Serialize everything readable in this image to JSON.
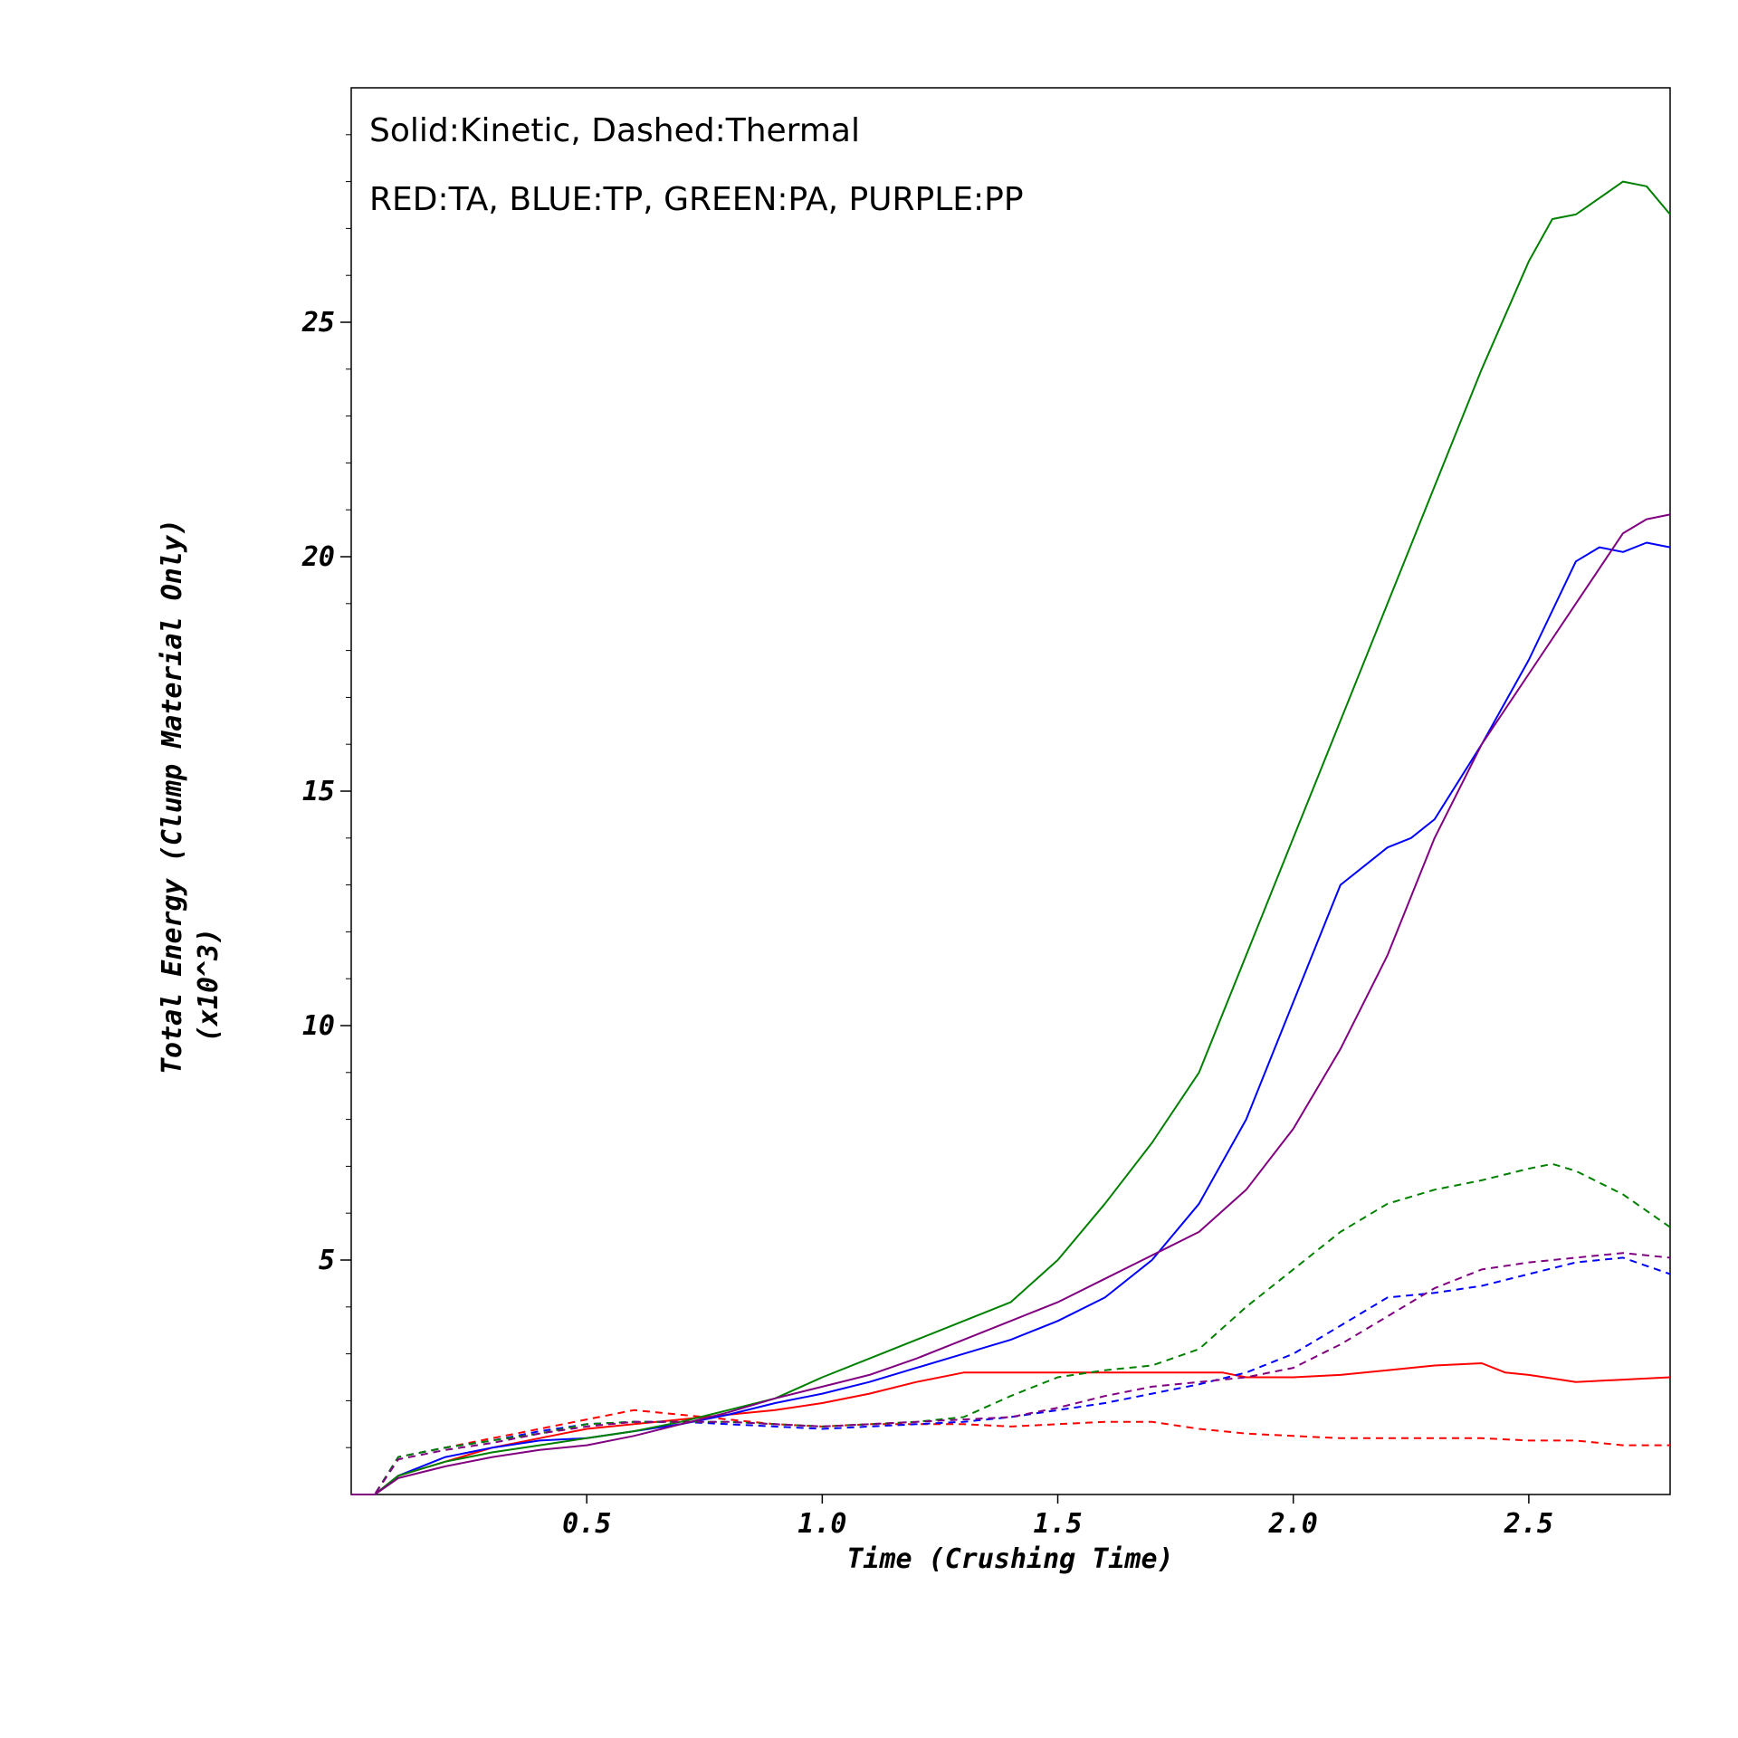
{
  "chart_data": {
    "type": "line",
    "annotations": [
      "Solid:Kinetic, Dashed:Thermal",
      "RED:TA, BLUE:TP, GREEN:PA, PURPLE:PP"
    ],
    "xlabel": "Time (Crushing Time)",
    "ylabel": "Total Energy (Clump Material Only)",
    "ylabel_unit": "(x10^3)",
    "xlim": [
      0,
      2.8
    ],
    "ylim": [
      0,
      30
    ],
    "x_ticks": [
      0.5,
      1.0,
      1.5,
      2.0,
      2.5
    ],
    "x_tick_labels": [
      "0.5",
      "1.0",
      "1.5",
      "2.0",
      "2.5"
    ],
    "y_ticks": [
      5,
      10,
      15,
      20,
      25
    ],
    "y_tick_labels": [
      "5",
      "10",
      "15",
      "20",
      "25"
    ],
    "grid": false,
    "series": [
      {
        "color": "#ff0000",
        "style": "solid",
        "x": [
          0,
          0.05,
          0.1,
          0.2,
          0.3,
          0.4,
          0.5,
          0.6,
          0.7,
          0.8,
          0.9,
          1.0,
          1.1,
          1.2,
          1.3,
          1.4,
          1.5,
          1.6,
          1.7,
          1.8,
          1.85,
          1.9,
          2.0,
          2.1,
          2.2,
          2.3,
          2.4,
          2.45,
          2.5,
          2.6,
          2.7,
          2.8
        ],
        "y": [
          0,
          0,
          0.4,
          0.7,
          1.0,
          1.2,
          1.4,
          1.5,
          1.6,
          1.7,
          1.8,
          1.95,
          2.15,
          2.4,
          2.6,
          2.6,
          2.6,
          2.6,
          2.6,
          2.6,
          2.6,
          2.5,
          2.5,
          2.55,
          2.65,
          2.75,
          2.8,
          2.6,
          2.55,
          2.4,
          2.45,
          2.5
        ]
      },
      {
        "color": "#ff0000",
        "style": "dashed",
        "x": [
          0,
          0.05,
          0.1,
          0.2,
          0.3,
          0.4,
          0.5,
          0.6,
          0.7,
          0.8,
          0.9,
          1.0,
          1.1,
          1.2,
          1.3,
          1.4,
          1.5,
          1.6,
          1.7,
          1.8,
          1.9,
          2.0,
          2.1,
          2.2,
          2.3,
          2.4,
          2.5,
          2.6,
          2.7,
          2.8
        ],
        "y": [
          0,
          0,
          0.8,
          1.0,
          1.2,
          1.4,
          1.6,
          1.8,
          1.7,
          1.6,
          1.5,
          1.45,
          1.5,
          1.5,
          1.5,
          1.45,
          1.5,
          1.55,
          1.55,
          1.4,
          1.3,
          1.25,
          1.2,
          1.2,
          1.2,
          1.2,
          1.15,
          1.15,
          1.05,
          1.05
        ]
      },
      {
        "color": "#0000ff",
        "style": "solid",
        "x": [
          0,
          0.05,
          0.1,
          0.2,
          0.3,
          0.4,
          0.5,
          0.6,
          0.7,
          0.8,
          0.9,
          1.0,
          1.1,
          1.2,
          1.3,
          1.4,
          1.5,
          1.6,
          1.7,
          1.8,
          1.9,
          2.0,
          2.1,
          2.2,
          2.25,
          2.3,
          2.4,
          2.5,
          2.6,
          2.65,
          2.7,
          2.75,
          2.8
        ],
        "y": [
          0,
          0,
          0.4,
          0.8,
          1.0,
          1.15,
          1.2,
          1.35,
          1.5,
          1.7,
          1.95,
          2.15,
          2.4,
          2.7,
          3.0,
          3.3,
          3.7,
          4.2,
          5.0,
          6.2,
          8.0,
          10.5,
          13.0,
          13.8,
          14.0,
          14.4,
          16.0,
          17.8,
          19.9,
          20.2,
          20.1,
          20.3,
          20.2
        ]
      },
      {
        "color": "#0000ff",
        "style": "dashed",
        "x": [
          0,
          0.05,
          0.1,
          0.2,
          0.3,
          0.4,
          0.5,
          0.6,
          0.7,
          0.8,
          0.9,
          1.0,
          1.1,
          1.2,
          1.3,
          1.4,
          1.5,
          1.6,
          1.7,
          1.8,
          1.9,
          2.0,
          2.1,
          2.2,
          2.3,
          2.4,
          2.5,
          2.6,
          2.7,
          2.8
        ],
        "y": [
          0,
          0,
          0.8,
          1.0,
          1.15,
          1.35,
          1.5,
          1.55,
          1.55,
          1.5,
          1.45,
          1.4,
          1.45,
          1.5,
          1.55,
          1.65,
          1.8,
          1.95,
          2.15,
          2.35,
          2.6,
          3.0,
          3.6,
          4.2,
          4.3,
          4.45,
          4.7,
          4.95,
          5.05,
          4.7
        ]
      },
      {
        "color": "#008000",
        "style": "solid",
        "x": [
          0,
          0.05,
          0.1,
          0.2,
          0.3,
          0.4,
          0.5,
          0.6,
          0.7,
          0.8,
          0.9,
          1.0,
          1.1,
          1.2,
          1.3,
          1.4,
          1.5,
          1.6,
          1.7,
          1.8,
          1.9,
          2.0,
          2.1,
          2.2,
          2.3,
          2.4,
          2.5,
          2.55,
          2.6,
          2.7,
          2.75,
          2.8
        ],
        "y": [
          0,
          0,
          0.4,
          0.7,
          0.9,
          1.05,
          1.2,
          1.35,
          1.55,
          1.8,
          2.05,
          2.5,
          2.9,
          3.3,
          3.7,
          4.1,
          5.0,
          6.2,
          7.5,
          9.0,
          11.5,
          14.0,
          16.5,
          19.0,
          21.5,
          24.0,
          26.3,
          27.2,
          27.3,
          28.0,
          27.9,
          27.3
        ]
      },
      {
        "color": "#008000",
        "style": "dashed",
        "x": [
          0,
          0.05,
          0.1,
          0.2,
          0.3,
          0.4,
          0.5,
          0.6,
          0.7,
          0.8,
          0.9,
          1.0,
          1.1,
          1.2,
          1.3,
          1.4,
          1.5,
          1.6,
          1.7,
          1.8,
          1.9,
          2.0,
          2.1,
          2.2,
          2.3,
          2.4,
          2.5,
          2.55,
          2.6,
          2.7,
          2.8
        ],
        "y": [
          0,
          0,
          0.8,
          1.0,
          1.15,
          1.3,
          1.5,
          1.55,
          1.55,
          1.55,
          1.5,
          1.45,
          1.5,
          1.55,
          1.65,
          2.1,
          2.5,
          2.65,
          2.75,
          3.1,
          4.0,
          4.8,
          5.6,
          6.2,
          6.5,
          6.7,
          6.95,
          7.05,
          6.9,
          6.4,
          5.7
        ]
      },
      {
        "color": "#800080",
        "style": "solid",
        "x": [
          0,
          0.05,
          0.1,
          0.2,
          0.3,
          0.4,
          0.5,
          0.6,
          0.7,
          0.8,
          0.9,
          1.0,
          1.1,
          1.2,
          1.3,
          1.4,
          1.5,
          1.6,
          1.7,
          1.8,
          1.9,
          2.0,
          2.1,
          2.2,
          2.3,
          2.4,
          2.5,
          2.6,
          2.7,
          2.75,
          2.8
        ],
        "y": [
          0,
          0,
          0.35,
          0.6,
          0.8,
          0.95,
          1.05,
          1.25,
          1.5,
          1.75,
          2.05,
          2.3,
          2.55,
          2.9,
          3.3,
          3.7,
          4.1,
          4.6,
          5.1,
          5.6,
          6.5,
          7.8,
          9.5,
          11.5,
          14.0,
          16.0,
          17.5,
          19.0,
          20.5,
          20.8,
          20.9
        ]
      },
      {
        "color": "#800080",
        "style": "dashed",
        "x": [
          0,
          0.05,
          0.1,
          0.2,
          0.3,
          0.4,
          0.5,
          0.6,
          0.7,
          0.8,
          0.9,
          1.0,
          1.1,
          1.2,
          1.3,
          1.4,
          1.5,
          1.6,
          1.7,
          1.8,
          1.9,
          2.0,
          2.1,
          2.2,
          2.3,
          2.4,
          2.5,
          2.6,
          2.7,
          2.8
        ],
        "y": [
          0,
          0,
          0.75,
          0.95,
          1.1,
          1.3,
          1.45,
          1.55,
          1.55,
          1.55,
          1.5,
          1.45,
          1.5,
          1.55,
          1.6,
          1.65,
          1.85,
          2.1,
          2.3,
          2.4,
          2.5,
          2.7,
          3.2,
          3.8,
          4.4,
          4.8,
          4.95,
          5.05,
          5.15,
          5.05
        ]
      }
    ]
  }
}
